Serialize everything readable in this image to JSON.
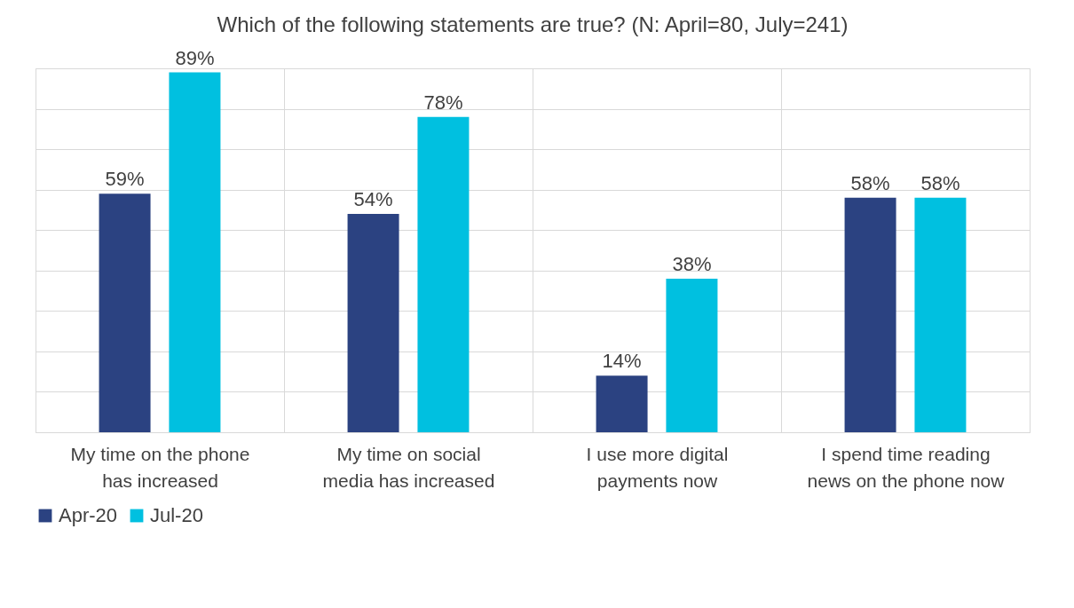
{
  "chart_data": {
    "type": "bar",
    "title": "Which of the following statements are true? (N: April=80, July=241)",
    "categories": [
      "My time on the phone has increased",
      "My time on social media has increased",
      "I use more digital payments now",
      "I spend time reading news on the phone now"
    ],
    "series": [
      {
        "name": "Apr-20",
        "color": "#2b4281",
        "values": [
          59,
          54,
          14,
          58
        ],
        "value_labels": [
          "59%",
          "54%",
          "14%",
          "58%"
        ]
      },
      {
        "name": "Jul-20",
        "color": "#00c0e0",
        "values": [
          89,
          78,
          38,
          58
        ],
        "value_labels": [
          "89%",
          "78%",
          "38%",
          "58%"
        ]
      }
    ],
    "grid": true,
    "legend": "bottom"
  }
}
